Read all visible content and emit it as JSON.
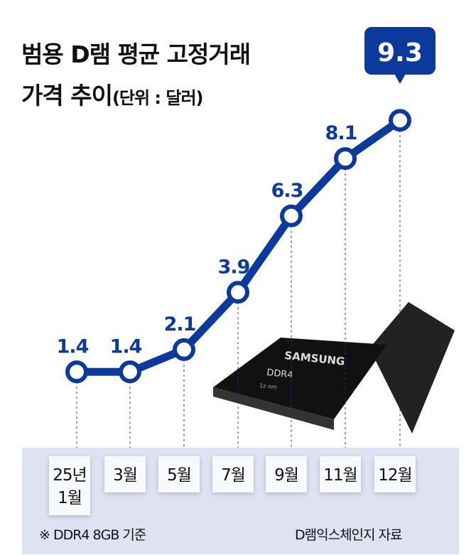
{
  "title_line1": "범용 D램 평균 고정거래",
  "title_line2": "가격 추이",
  "unit": "(단위 : 달러)",
  "footnote": "※ DDR4 8GB 기준",
  "source": "D램익스체인지 자료",
  "chip": {
    "brand": "SAMSUNG",
    "model": "DDR4",
    "sub": "1z nm"
  },
  "colors": {
    "line": "#0c3a9c",
    "panel": "#dfe3f1",
    "callout": "#0c3a9c"
  },
  "chart_data": {
    "type": "line",
    "categories": [
      "25년 1월",
      "3월",
      "5월",
      "7월",
      "9월",
      "11월",
      "12월"
    ],
    "values": [
      1.4,
      1.4,
      2.1,
      3.9,
      6.3,
      8.1,
      9.3
    ],
    "data_labels": [
      "1.4",
      "1.4",
      "2.1",
      "3.9",
      "6.3",
      "8.1",
      "9.3"
    ],
    "highlight_index": 6
  }
}
